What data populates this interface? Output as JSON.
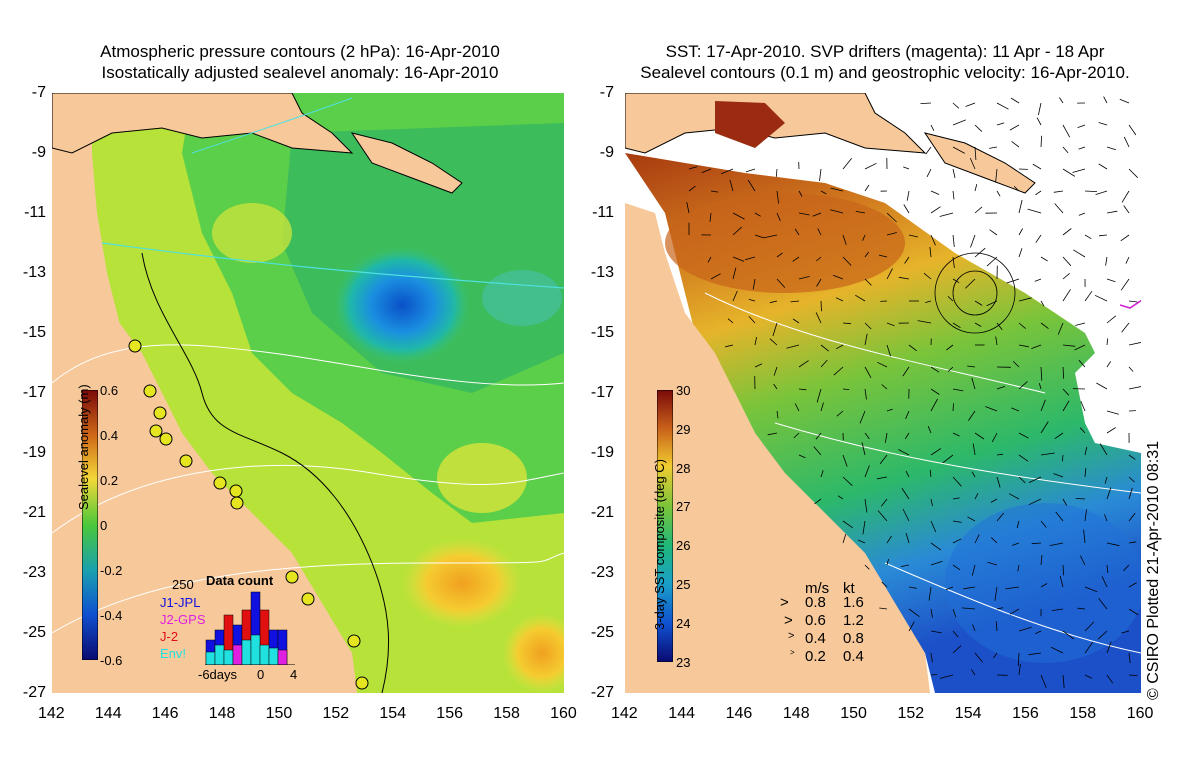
{
  "left_panel": {
    "title_line1": "Atmospheric pressure contours (2 hPa): 16-Apr-2010",
    "title_line2": "Isostatically adjusted sealevel anomaly: 16-Apr-2010",
    "colorbar_label": "Sealevel anomaly (m)",
    "colorbar_ticks": [
      "0.6",
      "0.4",
      "0.2",
      "0",
      "-0.2",
      "-0.4",
      "-0.6"
    ],
    "data_count": {
      "title": "Data count",
      "max_label": "250",
      "legend": [
        {
          "label": "J1-JPL",
          "color": "#1010e0"
        },
        {
          "label": "J2-GPS",
          "color": "#e020e0"
        },
        {
          "label": "J-2",
          "color": "#e01010"
        },
        {
          "label": "Env!",
          "color": "#20e0e0"
        }
      ],
      "x_ticks": [
        "-6days",
        "0",
        "4"
      ]
    }
  },
  "right_panel": {
    "title_line1": "SST: 17-Apr-2010. SVP drifters (magenta): 11 Apr - 18 Apr",
    "title_line2": "Sealevel contours (0.1 m) and geostrophic velocity: 16-Apr-2010.",
    "colorbar_label": "3-day SST composite (deg C)",
    "colorbar_ticks": [
      "30",
      "29",
      "28",
      "27",
      "26",
      "25",
      "24",
      "23"
    ],
    "velocity_legend": {
      "header_ms": "m/s",
      "header_kt": "kt",
      "rows": [
        {
          "ms": "0.8",
          "kt": "1.6"
        },
        {
          "ms": "0.6",
          "kt": "1.2"
        },
        {
          "ms": "0.4",
          "kt": "0.8"
        },
        {
          "ms": "0.2",
          "kt": "0.4"
        }
      ]
    }
  },
  "y_ticks": [
    "-7",
    "-9",
    "-11",
    "-13",
    "-15",
    "-17",
    "-19",
    "-21",
    "-23",
    "-25",
    "-27"
  ],
  "x_ticks": [
    "142",
    "144",
    "146",
    "148",
    "150",
    "152",
    "154",
    "156",
    "158",
    "160"
  ],
  "credit": "© CSIRO Plotted 21-Apr-2010 08:31",
  "colors": {
    "land": "#f7c89a",
    "sea_green": "#5fca3c",
    "sst_orange": "#d2741c",
    "sst_blue": "#2f7fe0"
  }
}
